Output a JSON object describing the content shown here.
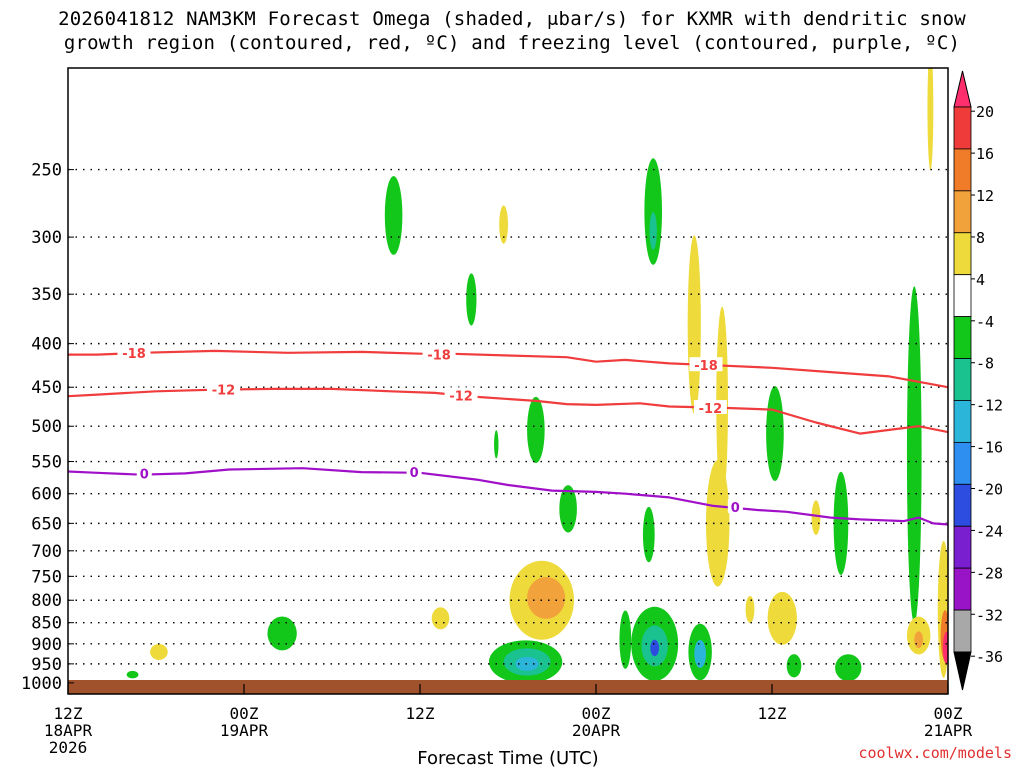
{
  "title": {
    "line1": "2026041812 NAM3KM Forecast Omega (shaded, μbar/s) for KXMR with dendritic snow",
    "line2": "growth region (contoured, red, ºC) and freezing level (contoured, purple, ºC)"
  },
  "credit": "coolwx.com/models",
  "chart_data": {
    "type": "time-height contour",
    "xlabel": "Forecast Time (UTC)",
    "ylabel": "",
    "x_ticks": [
      {
        "label": "12Z",
        "sub": [
          "18APR",
          "2026"
        ],
        "hours": 0
      },
      {
        "label": "00Z",
        "sub": [
          "19APR"
        ],
        "hours": 12
      },
      {
        "label": "12Z",
        "sub": [],
        "hours": 24
      },
      {
        "label": "00Z",
        "sub": [
          "20APR"
        ],
        "hours": 36
      },
      {
        "label": "12Z",
        "sub": [],
        "hours": 48
      },
      {
        "label": "00Z",
        "sub": [
          "21APR"
        ],
        "hours": 60
      }
    ],
    "xlim_hours": [
      0,
      60
    ],
    "y_axis": {
      "scale": "log-pressure",
      "range_hpa": [
        1025,
        190
      ],
      "reversed": true
    },
    "y_ticks": [
      1000,
      950,
      900,
      850,
      800,
      750,
      700,
      650,
      600,
      550,
      500,
      450,
      400,
      350,
      300,
      250
    ],
    "grid": true,
    "colorbar": {
      "labels": [
        "20",
        "16",
        "12",
        "8",
        "4",
        "-4",
        "-8",
        "-12",
        "-16",
        "-20",
        "-24",
        "-28",
        "-32",
        "-36"
      ],
      "colors": [
        "#ff2f6e",
        "#f03b3b",
        "#f07b28",
        "#f2a23a",
        "#eedb3b",
        "#ffffff",
        "#12c71a",
        "#19c28f",
        "#2bb5d8",
        "#2f8ff0",
        "#2c4de0",
        "#7a1fd0",
        "#9a14c7",
        "#a8a8a8",
        "#000000"
      ]
    },
    "contours": [
      {
        "label": "-18",
        "color": "#f03c3c",
        "points": [
          [
            0,
            412
          ],
          [
            2,
            412
          ],
          [
            5,
            410
          ],
          [
            10,
            408
          ],
          [
            15,
            410
          ],
          [
            20,
            409
          ],
          [
            24,
            411
          ],
          [
            26,
            411
          ],
          [
            30,
            413
          ],
          [
            34,
            415
          ],
          [
            36,
            420
          ],
          [
            38,
            418
          ],
          [
            41,
            422
          ],
          [
            44,
            424
          ],
          [
            48,
            427
          ],
          [
            52,
            432
          ],
          [
            56,
            437
          ],
          [
            60,
            450
          ]
        ]
      },
      {
        "label": "-12",
        "color": "#f03c3c",
        "points": [
          [
            0,
            461
          ],
          [
            2,
            459
          ],
          [
            6,
            455
          ],
          [
            10,
            453
          ],
          [
            14,
            452
          ],
          [
            18,
            452
          ],
          [
            22,
            455
          ],
          [
            25,
            457
          ],
          [
            28,
            462
          ],
          [
            32,
            467
          ],
          [
            34,
            471
          ],
          [
            36,
            472
          ],
          [
            39,
            470
          ],
          [
            41,
            474
          ],
          [
            45,
            476
          ],
          [
            48,
            478
          ],
          [
            51,
            495
          ],
          [
            54,
            510
          ],
          [
            56,
            505
          ],
          [
            58,
            500
          ],
          [
            60,
            508
          ]
        ]
      },
      {
        "label": "0",
        "color": "#a010c8",
        "points": [
          [
            0,
            565
          ],
          [
            2,
            567
          ],
          [
            5,
            570
          ],
          [
            8,
            568
          ],
          [
            11,
            562
          ],
          [
            16,
            560
          ],
          [
            20,
            566
          ],
          [
            24,
            567
          ],
          [
            28,
            578
          ],
          [
            30,
            586
          ],
          [
            33,
            595
          ],
          [
            36,
            597
          ],
          [
            38,
            600
          ],
          [
            41,
            606
          ],
          [
            44,
            620
          ],
          [
            47,
            627
          ],
          [
            49,
            630
          ],
          [
            52,
            640
          ],
          [
            54,
            643
          ],
          [
            57,
            646
          ],
          [
            58,
            640
          ],
          [
            59,
            650
          ],
          [
            60,
            652
          ]
        ]
      }
    ],
    "contour_labels": [
      {
        "text": "-18",
        "hours": 4.5,
        "p": 410,
        "color": "#f03c3c"
      },
      {
        "text": "-18",
        "hours": 25.3,
        "p": 412,
        "color": "#f03c3c"
      },
      {
        "text": "-18",
        "hours": 43.5,
        "p": 424,
        "color": "#f03c3c"
      },
      {
        "text": "-12",
        "hours": 10.6,
        "p": 453,
        "color": "#f03c3c"
      },
      {
        "text": "-12",
        "hours": 26.8,
        "p": 460,
        "color": "#f03c3c"
      },
      {
        "text": "-12",
        "hours": 43.8,
        "p": 476,
        "color": "#f03c3c"
      },
      {
        "text": "0",
        "hours": 5.2,
        "p": 568,
        "color": "#a010c8"
      },
      {
        "text": "0",
        "hours": 23.6,
        "p": 566,
        "color": "#a010c8"
      },
      {
        "text": "0",
        "hours": 45.5,
        "p": 622,
        "color": "#a010c8"
      }
    ],
    "omega_regions": [
      {
        "color": "#12c71a",
        "hours": 22.2,
        "p": 283,
        "hw": 0.6,
        "hh": 30
      },
      {
        "color": "#12c71a",
        "hours": 27.5,
        "p": 355,
        "hw": 0.35,
        "hh": 25
      },
      {
        "color": "#12c71a",
        "hours": 39.9,
        "p": 280,
        "hw": 0.6,
        "hh": 40
      },
      {
        "color": "#19c28f",
        "hours": 39.9,
        "p": 295,
        "hw": 0.25,
        "hh": 15
      },
      {
        "color": "#12c71a",
        "hours": 31.9,
        "p": 505,
        "hw": 0.6,
        "hh": 45
      },
      {
        "color": "#12c71a",
        "hours": 29.2,
        "p": 525,
        "hw": 0.15,
        "hh": 20
      },
      {
        "color": "#12c71a",
        "hours": 34.1,
        "p": 625,
        "hw": 0.6,
        "hh": 40
      },
      {
        "color": "#12c71a",
        "hours": 14.6,
        "p": 875,
        "hw": 1.0,
        "hh": 40
      },
      {
        "color": "#12c71a",
        "hours": 31.2,
        "p": 945,
        "hw": 2.5,
        "hh": 55
      },
      {
        "color": "#19c28f",
        "hours": 31.3,
        "p": 945,
        "hw": 1.6,
        "hh": 35
      },
      {
        "color": "#2bb5d8",
        "hours": 31.3,
        "p": 950,
        "hw": 0.8,
        "hh": 18
      },
      {
        "color": "#12c71a",
        "hours": 40.0,
        "p": 900,
        "hw": 1.6,
        "hh": 90
      },
      {
        "color": "#19c28f",
        "hours": 40.0,
        "p": 905,
        "hw": 0.9,
        "hh": 50
      },
      {
        "color": "#2c4de0",
        "hours": 40.0,
        "p": 910,
        "hw": 0.3,
        "hh": 20
      },
      {
        "color": "#12c71a",
        "hours": 43.1,
        "p": 920,
        "hw": 0.8,
        "hh": 70
      },
      {
        "color": "#2bb5d8",
        "hours": 43.1,
        "p": 925,
        "hw": 0.4,
        "hh": 35
      },
      {
        "color": "#12c71a",
        "hours": 38.0,
        "p": 890,
        "hw": 0.4,
        "hh": 70
      },
      {
        "color": "#12c71a",
        "hours": 48.2,
        "p": 510,
        "hw": 0.6,
        "hh": 65
      },
      {
        "color": "#12c71a",
        "hours": 57.7,
        "p": 540,
        "hw": 0.5,
        "hh": 230
      },
      {
        "color": "#12c71a",
        "hours": 52.7,
        "p": 650,
        "hw": 0.5,
        "hh": 90
      },
      {
        "color": "#12c71a",
        "hours": 53.2,
        "p": 960,
        "hw": 0.9,
        "hh": 35
      },
      {
        "color": "#12c71a",
        "hours": 49.5,
        "p": 955,
        "hw": 0.5,
        "hh": 30
      },
      {
        "color": "#12c71a",
        "hours": 39.6,
        "p": 670,
        "hw": 0.4,
        "hh": 50
      },
      {
        "color": "#12c71a",
        "hours": 4.4,
        "p": 978,
        "hw": 0.4,
        "hh": 10
      },
      {
        "color": "#eedb3b",
        "hours": 32.3,
        "p": 800,
        "hw": 2.2,
        "hh": 85
      },
      {
        "color": "#f2a23a",
        "hours": 32.6,
        "p": 795,
        "hw": 1.3,
        "hh": 45
      },
      {
        "color": "#eedb3b",
        "hours": 42.7,
        "p": 380,
        "hw": 0.45,
        "hh": 90
      },
      {
        "color": "#eedb3b",
        "hours": 44.6,
        "p": 470,
        "hw": 0.4,
        "hh": 120
      },
      {
        "color": "#eedb3b",
        "hours": 44.3,
        "p": 650,
        "hw": 0.8,
        "hh": 110
      },
      {
        "color": "#eedb3b",
        "hours": 46.5,
        "p": 820,
        "hw": 0.3,
        "hh": 30
      },
      {
        "color": "#eedb3b",
        "hours": 48.7,
        "p": 840,
        "hw": 1.0,
        "hh": 60
      },
      {
        "color": "#eedb3b",
        "hours": 58.8,
        "p": 212,
        "hw": 0.2,
        "hh": 35
      },
      {
        "color": "#eedb3b",
        "hours": 25.4,
        "p": 840,
        "hw": 0.6,
        "hh": 25
      },
      {
        "color": "#eedb3b",
        "hours": 6.2,
        "p": 920,
        "hw": 0.6,
        "hh": 20
      },
      {
        "color": "#eedb3b",
        "hours": 29.7,
        "p": 290,
        "hw": 0.3,
        "hh": 15
      },
      {
        "color": "#eedb3b",
        "hours": 58.0,
        "p": 880,
        "hw": 0.8,
        "hh": 45
      },
      {
        "color": "#f2a23a",
        "hours": 58.0,
        "p": 890,
        "hw": 0.3,
        "hh": 20
      },
      {
        "color": "#eedb3b",
        "hours": 51.0,
        "p": 640,
        "hw": 0.3,
        "hh": 30
      },
      {
        "color": "#eedb3b",
        "hours": 59.7,
        "p": 820,
        "hw": 0.4,
        "hh": 150
      },
      {
        "color": "#f07b28",
        "hours": 59.8,
        "p": 880,
        "hw": 0.3,
        "hh": 60
      },
      {
        "color": "#ff2f6e",
        "hours": 59.9,
        "p": 910,
        "hw": 0.25,
        "hh": 40
      }
    ]
  }
}
